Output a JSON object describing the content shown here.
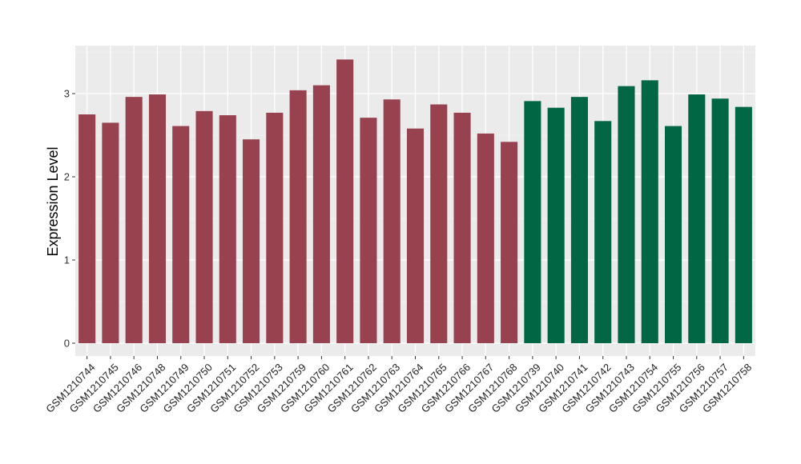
{
  "chart_data": {
    "type": "bar",
    "title": "",
    "xlabel": "",
    "ylabel": "Expression Level",
    "ylim": [
      0,
      3.58
    ],
    "yticks": [
      0,
      1,
      2,
      3
    ],
    "grid": true,
    "legend": "none",
    "colors": {
      "group1": "#984250",
      "group2": "#006644",
      "panel": "#ebebeb",
      "grid_major": "#ffffff",
      "grid_minor": "#f5f5f5"
    },
    "categories": [
      "GSM1210744",
      "GSM1210745",
      "GSM1210746",
      "GSM1210748",
      "GSM1210749",
      "GSM1210750",
      "GSM1210751",
      "GSM1210752",
      "GSM1210753",
      "GSM1210759",
      "GSM1210760",
      "GSM1210761",
      "GSM1210762",
      "GSM1210763",
      "GSM1210764",
      "GSM1210765",
      "GSM1210766",
      "GSM1210767",
      "GSM1210768",
      "GSM1210739",
      "GSM1210740",
      "GSM1210741",
      "GSM1210742",
      "GSM1210743",
      "GSM1210754",
      "GSM1210755",
      "GSM1210756",
      "GSM1210757",
      "GSM1210758"
    ],
    "values": [
      2.75,
      2.65,
      2.96,
      2.99,
      2.61,
      2.79,
      2.74,
      2.45,
      2.77,
      3.04,
      3.1,
      3.41,
      2.71,
      2.93,
      2.58,
      2.87,
      2.77,
      2.52,
      2.42,
      2.91,
      2.83,
      2.96,
      2.67,
      3.09,
      3.16,
      2.61,
      2.99,
      2.94,
      2.84
    ],
    "groups": [
      "group1",
      "group1",
      "group1",
      "group1",
      "group1",
      "group1",
      "group1",
      "group1",
      "group1",
      "group1",
      "group1",
      "group1",
      "group1",
      "group1",
      "group1",
      "group1",
      "group1",
      "group1",
      "group1",
      "group2",
      "group2",
      "group2",
      "group2",
      "group2",
      "group2",
      "group2",
      "group2",
      "group2",
      "group2"
    ]
  }
}
